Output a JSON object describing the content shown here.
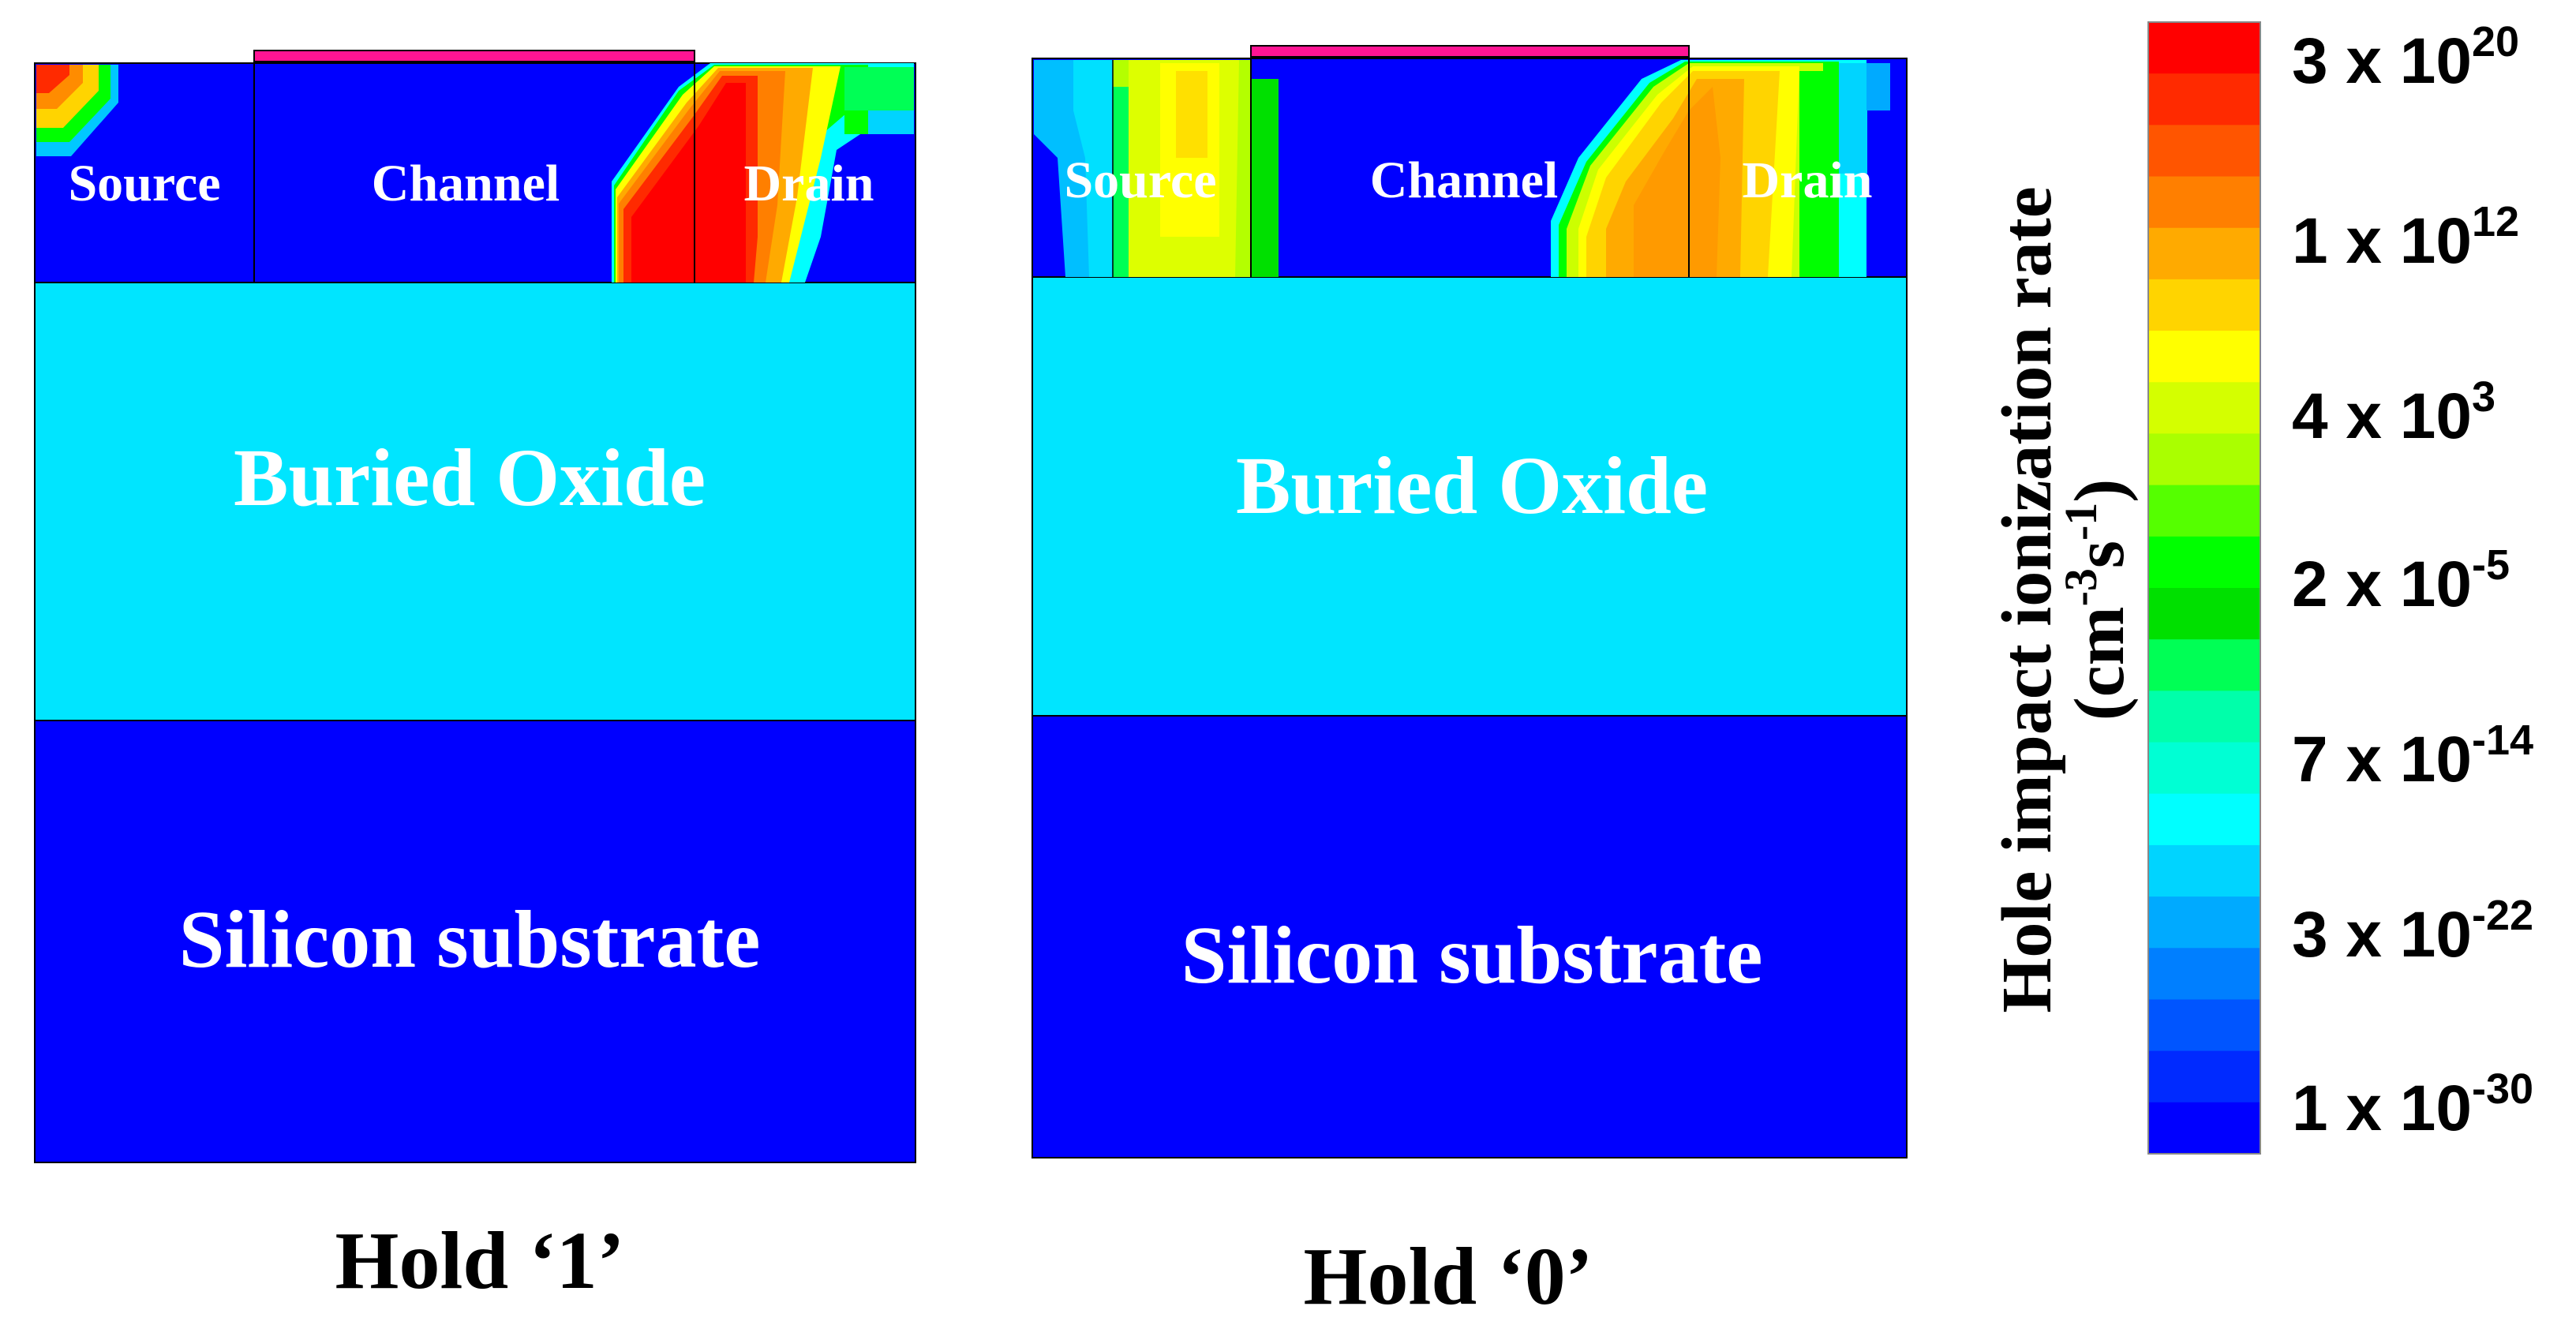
{
  "panels": [
    {
      "caption": "Hold ‘1’",
      "labels": {
        "source": "Source",
        "channel": "Channel",
        "drain": "Drain",
        "oxide": "Buried Oxide",
        "substrate": "Silicon substrate"
      }
    },
    {
      "caption": "Hold ‘0’",
      "labels": {
        "source": "Source",
        "channel": "Channel",
        "drain": "Drain",
        "oxide": "Buried Oxide",
        "substrate": "Silicon substrate"
      }
    }
  ],
  "colorbar": {
    "title_line1": "Hole impact ionization rate",
    "title_line2_base": "(cm",
    "title_line2_exp1": "-3",
    "title_line2_mid": "s",
    "title_line2_exp2": "-1",
    "title_line2_end": ")",
    "ticks": [
      {
        "mantissa": "3 x 10",
        "exponent": "20"
      },
      {
        "mantissa": "1 x 10",
        "exponent": "12"
      },
      {
        "mantissa": "4 x 10",
        "exponent": "3"
      },
      {
        "mantissa": "2 x 10",
        "exponent": "-5"
      },
      {
        "mantissa": "7 x 10",
        "exponent": "-14"
      },
      {
        "mantissa": "3 x 10",
        "exponent": "-22"
      },
      {
        "mantissa": "1 x 10",
        "exponent": "-30"
      }
    ],
    "scale_colors": [
      "#ff0000",
      "#ff2a00",
      "#ff5500",
      "#ff7f00",
      "#ffaa00",
      "#ffd400",
      "#ffff00",
      "#d4ff00",
      "#aaff00",
      "#55ff00",
      "#00ff00",
      "#00e000",
      "#00ff55",
      "#00ffaa",
      "#00ffd4",
      "#00ffff",
      "#00d4ff",
      "#00aaff",
      "#007fff",
      "#0055ff",
      "#002aff",
      "#0000ff"
    ]
  },
  "colors": {
    "silicon_low": "#0000ff",
    "oxide": "#00e5ff",
    "gate": "#ff1493",
    "label_text": "#ffffff"
  }
}
